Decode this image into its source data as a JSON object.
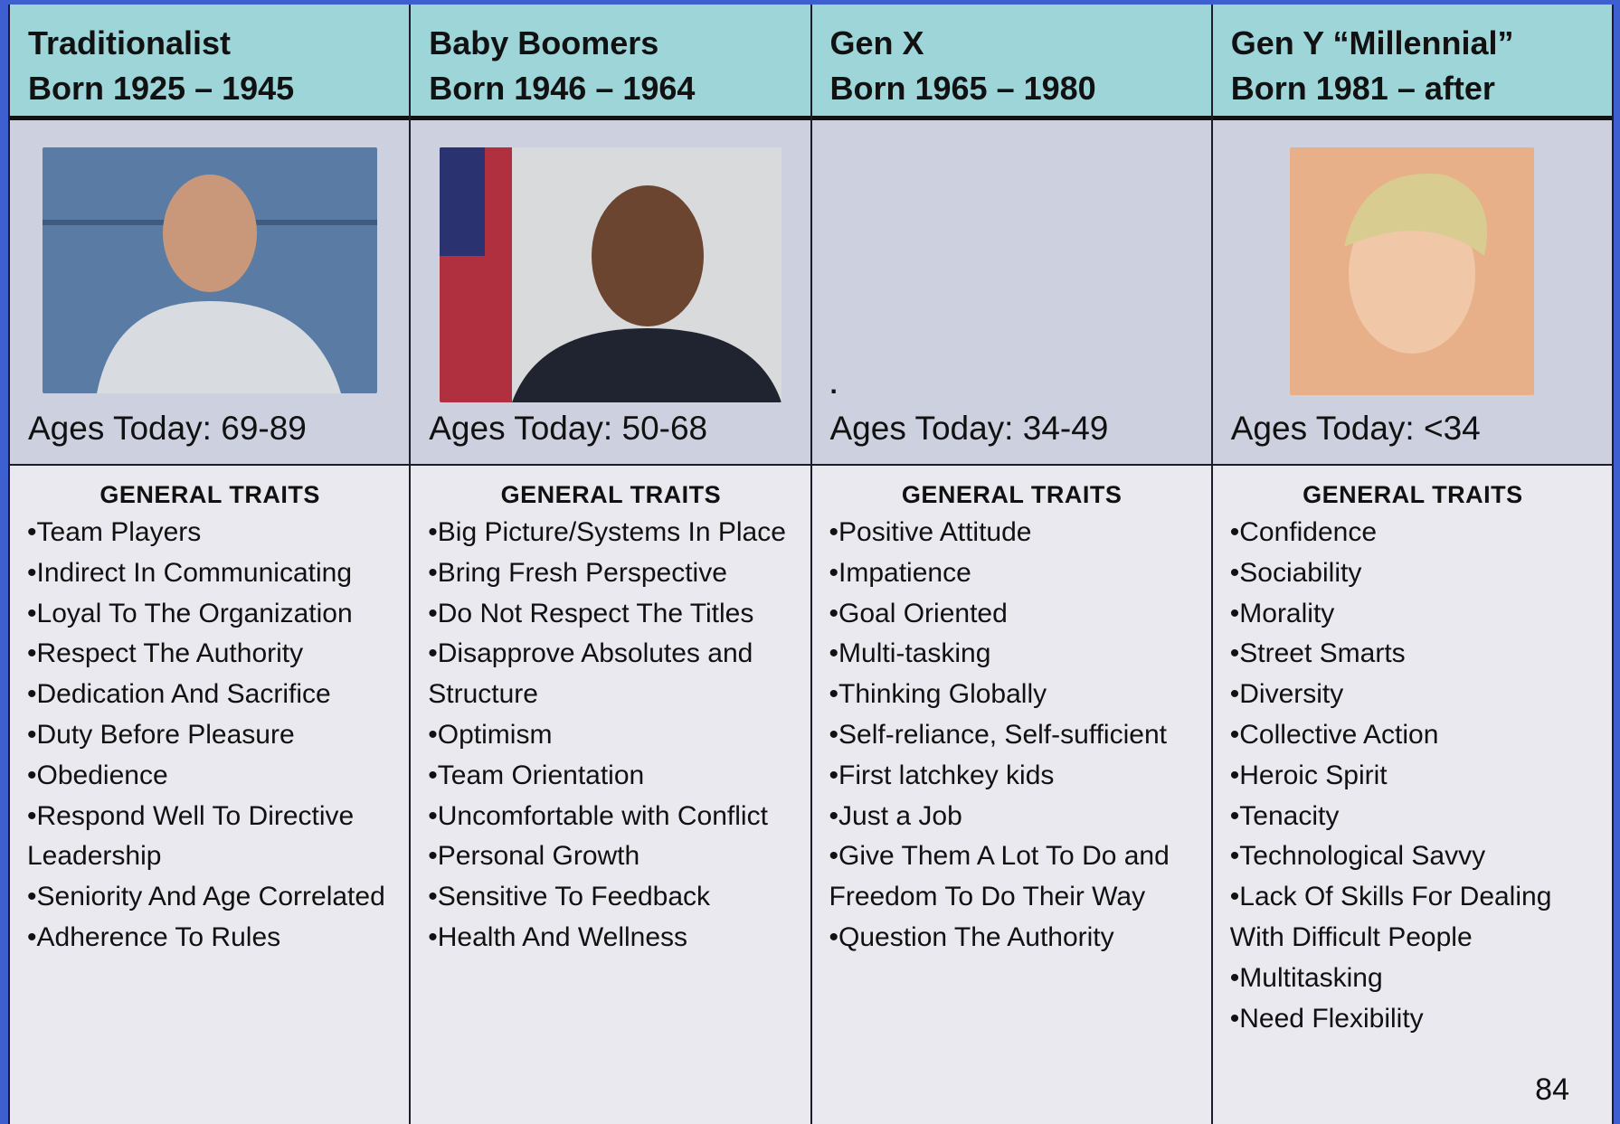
{
  "columns": [
    {
      "header": [
        "Traditionalist",
        "Born 1925 – 1945"
      ],
      "ages": "Ages Today: 69-89",
      "traits_title": "GENERAL TRAITS",
      "traits": [
        "Team Players",
        "Indirect In Communicating",
        "Loyal To The Organization",
        "Respect The Authority",
        "Dedication And Sacrifice",
        "Duty Before Pleasure",
        "Obedience",
        "Respond Well To Directive Leadership",
        "Seniority And Age Correlated",
        "Adherence To Rules"
      ]
    },
    {
      "header": [
        "Baby Boomers",
        "Born 1946 – 1964"
      ],
      "ages": "Ages Today: 50-68",
      "traits_title": "GENERAL TRAITS",
      "traits": [
        "Big Picture/Systems In Place",
        "Bring Fresh Perspective",
        "Do Not Respect The Titles",
        "Disapprove Absolutes and Structure",
        "Optimism",
        "Team Orientation",
        "Uncomfortable with Conflict",
        "Personal Growth",
        "Sensitive To Feedback",
        "Health And Wellness"
      ]
    },
    {
      "header": [
        "Gen X",
        "Born 1965 – 1980"
      ],
      "note": ".",
      "ages": "Ages Today: 34-49",
      "traits_title": "GENERAL TRAITS",
      "traits": [
        "Positive Attitude",
        "Impatience",
        "Goal Oriented",
        "Multi-tasking",
        "Thinking Globally",
        "Self-reliance, Self-sufficient",
        "First latchkey kids",
        "Just a Job",
        "Give Them A Lot To Do and Freedom To Do Their Way",
        "Question The Authority"
      ]
    },
    {
      "header": [
        "Gen Y “Millennial”",
        "Born 1981 – after"
      ],
      "ages": "Ages Today: <34",
      "traits_title": "GENERAL TRAITS",
      "traits": [
        "Confidence",
        "Sociability",
        "Morality",
        "Street Smarts",
        "Diversity",
        "Collective Action",
        "Heroic Spirit",
        "Tenacity",
        "Technological Savvy",
        "Lack Of Skills For Dealing With Difficult People",
        "Multitasking",
        "Need Flexibility"
      ]
    }
  ],
  "page_number": "84"
}
